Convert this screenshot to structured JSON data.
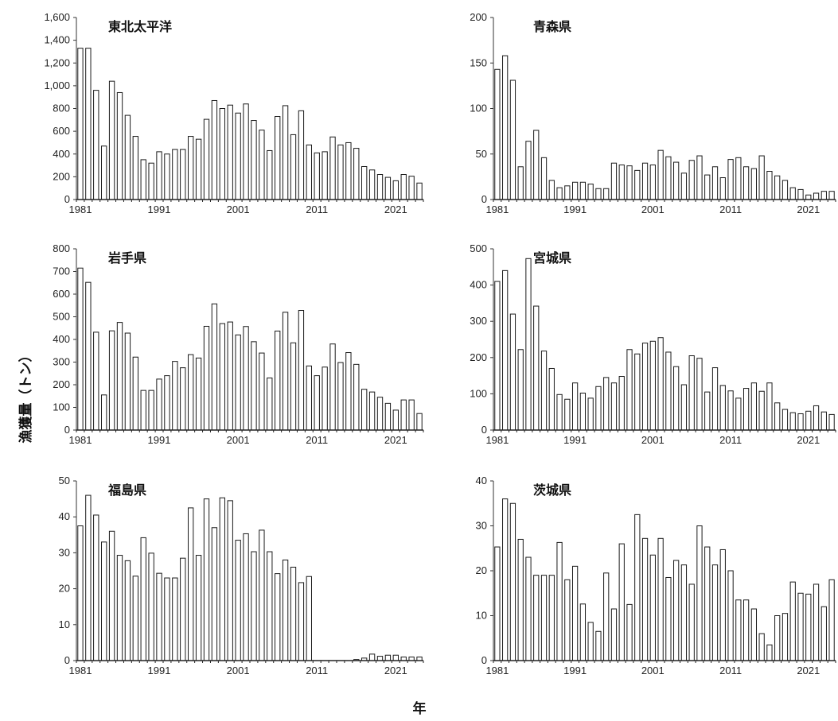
{
  "ylabel": "漁獲量（トン）",
  "xlabel": "年",
  "x_tick_labels": [
    "1981",
    "1991",
    "2001",
    "2011",
    "2021"
  ],
  "chart_data": [
    {
      "type": "bar",
      "title": "東北太平洋",
      "ylabel": "漁獲量（トン）",
      "xlabel": "年",
      "x_start": 1981,
      "ylim": [
        0,
        1600
      ],
      "y_ticks": [
        "0",
        "200",
        "400",
        "600",
        "800",
        "1,000",
        "1,200",
        "1,400",
        "1,600"
      ],
      "values": [
        1330,
        1330,
        960,
        470,
        1040,
        940,
        740,
        555,
        350,
        320,
        420,
        400,
        440,
        440,
        555,
        530,
        705,
        870,
        800,
        830,
        760,
        840,
        695,
        610,
        430,
        730,
        825,
        570,
        780,
        480,
        410,
        420,
        550,
        480,
        500,
        450,
        290,
        260,
        220,
        195,
        165,
        220,
        205,
        145
      ]
    },
    {
      "type": "bar",
      "title": "青森県",
      "ylabel": "漁獲量（トン）",
      "xlabel": "年",
      "x_start": 1981,
      "ylim": [
        0,
        200
      ],
      "y_ticks": [
        "0",
        "50",
        "100",
        "150",
        "200"
      ],
      "values": [
        143,
        158,
        131,
        36,
        64,
        76,
        46,
        21,
        13,
        15,
        19,
        19,
        17,
        12,
        12,
        40,
        38,
        37,
        32,
        40,
        38,
        54,
        47,
        41,
        29,
        43,
        48,
        27,
        36,
        24,
        44,
        46,
        36,
        34,
        48,
        31,
        26,
        21,
        13,
        11,
        5,
        7,
        9,
        9
      ]
    },
    {
      "type": "bar",
      "title": "岩手県",
      "ylabel": "漁獲量（トン）",
      "xlabel": "年",
      "x_start": 1981,
      "ylim": [
        0,
        800
      ],
      "y_ticks": [
        "0",
        "100",
        "200",
        "300",
        "400",
        "500",
        "600",
        "700",
        "800"
      ],
      "values": [
        715,
        652,
        432,
        155,
        438,
        475,
        428,
        322,
        175,
        175,
        225,
        240,
        303,
        275,
        333,
        318,
        458,
        557,
        470,
        477,
        420,
        457,
        390,
        340,
        230,
        437,
        520,
        385,
        528,
        283,
        240,
        278,
        380,
        298,
        342,
        290,
        180,
        168,
        145,
        118,
        88,
        133,
        133,
        73
      ]
    },
    {
      "type": "bar",
      "title": "宮城県",
      "ylabel": "漁獲量（トン）",
      "xlabel": "年",
      "x_start": 1981,
      "ylim": [
        0,
        500
      ],
      "y_ticks": [
        "0",
        "100",
        "200",
        "300",
        "400",
        "500"
      ],
      "values": [
        410,
        440,
        320,
        222,
        473,
        342,
        218,
        170,
        98,
        85,
        130,
        102,
        88,
        120,
        145,
        130,
        148,
        222,
        210,
        240,
        245,
        255,
        215,
        175,
        125,
        205,
        198,
        105,
        172,
        123,
        108,
        88,
        115,
        130,
        107,
        130,
        75,
        57,
        48,
        45,
        52,
        67,
        50,
        43
      ]
    },
    {
      "type": "bar",
      "title": "福島県",
      "ylabel": "漁獲量（トン）",
      "xlabel": "年",
      "x_start": 1981,
      "ylim": [
        0,
        50
      ],
      "y_ticks": [
        "0",
        "10",
        "20",
        "30",
        "40",
        "50"
      ],
      "values": [
        37.5,
        46,
        40.5,
        33,
        36,
        29.3,
        27.8,
        23.5,
        34.2,
        29.9,
        24.3,
        23,
        23,
        28.5,
        42.5,
        29.3,
        45,
        37,
        45.3,
        44.5,
        33.5,
        35.3,
        30.3,
        36.3,
        30.3,
        24.2,
        28,
        26,
        21.7,
        23.4,
        0,
        0,
        0,
        0,
        0,
        0.3,
        0.7,
        1.8,
        1.2,
        1.5,
        1.5,
        1,
        1,
        1
      ]
    },
    {
      "type": "bar",
      "title": "茨城県",
      "ylabel": "漁獲量（トン）",
      "xlabel": "年",
      "x_start": 1981,
      "ylim": [
        0,
        40
      ],
      "y_ticks": [
        "0",
        "10",
        "20",
        "30",
        "40"
      ],
      "values": [
        25.3,
        36,
        35,
        27,
        23,
        19,
        19,
        19,
        26.3,
        18,
        21,
        12.6,
        8.5,
        6.5,
        19.5,
        11.5,
        26,
        12.5,
        32.5,
        27.2,
        23.5,
        27.2,
        18.5,
        22.3,
        21.3,
        17,
        30,
        25.3,
        21.3,
        24.7,
        20,
        13.5,
        13.5,
        11.5,
        6,
        3.5,
        10,
        10.5,
        17.5,
        15,
        14.8,
        17,
        12,
        18
      ]
    }
  ]
}
